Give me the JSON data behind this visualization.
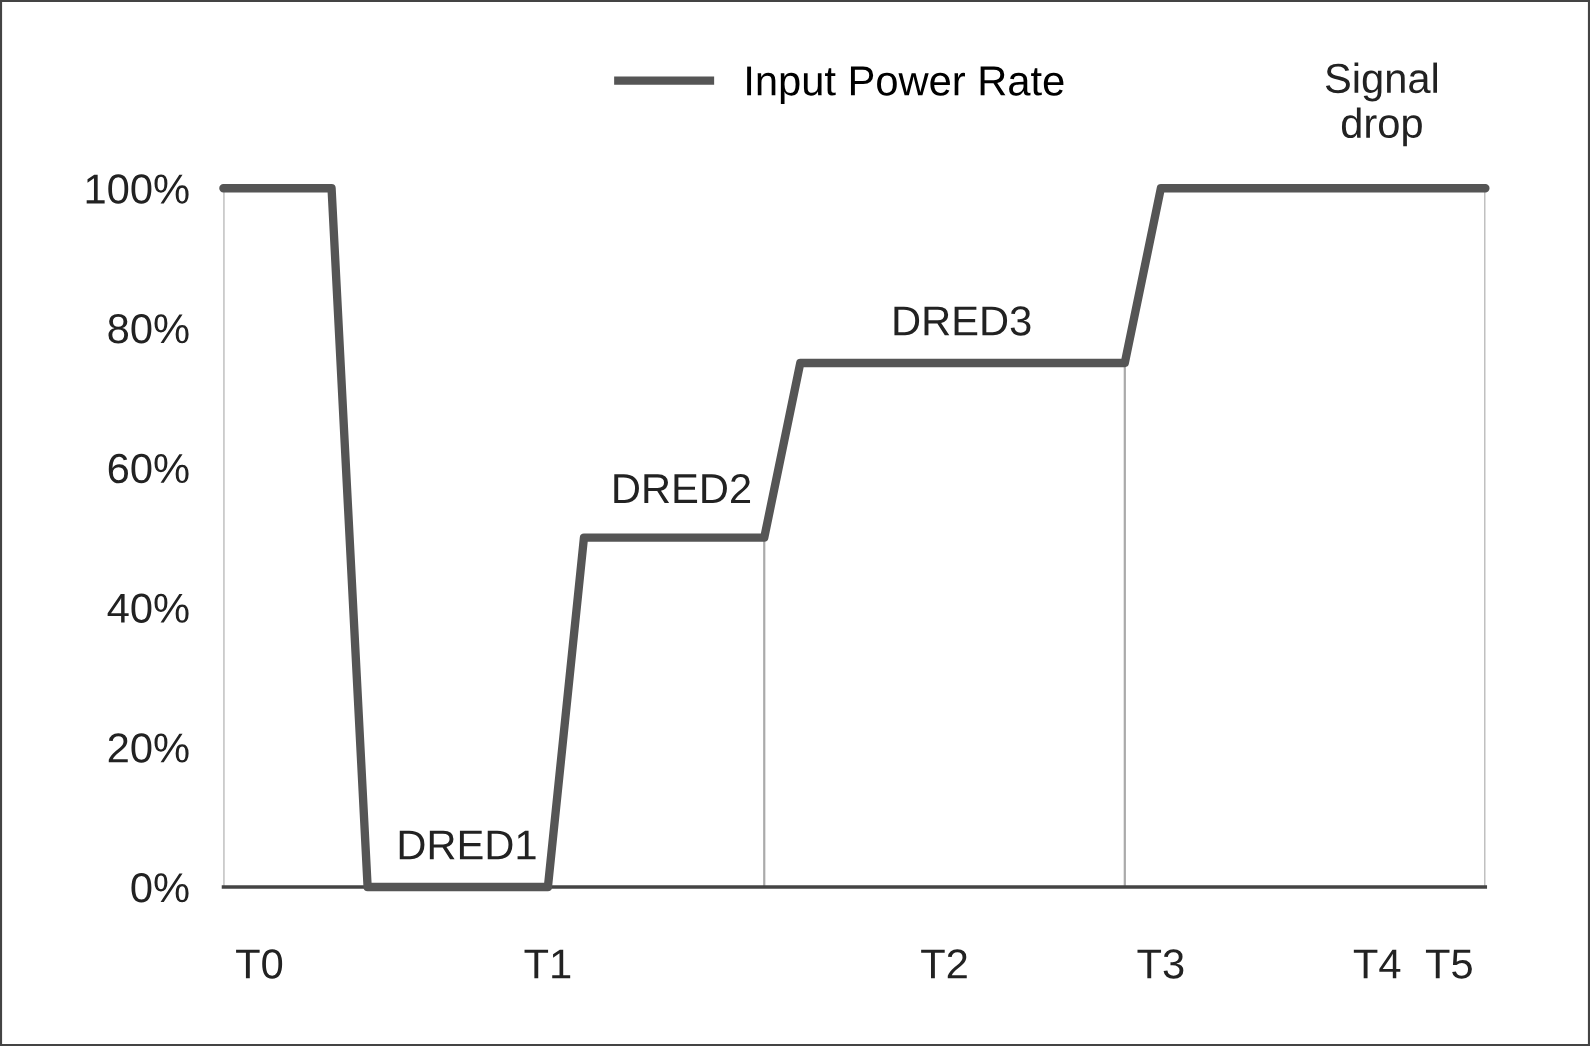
{
  "chart_data": {
    "type": "line",
    "categories": [
      null,
      "T0",
      null,
      null,
      null,
      null,
      null,
      null,
      null,
      "T1",
      null,
      null,
      null,
      null,
      null,
      null,
      null,
      null,
      null,
      null,
      "T2",
      null,
      null,
      null,
      null,
      null,
      "T3",
      null,
      null,
      null,
      null,
      null,
      "T4",
      null,
      "T5",
      null
    ],
    "series": [
      {
        "name": "Input Power Rate",
        "color": "#555555",
        "values": [
          100,
          100,
          100,
          100,
          0,
          0,
          0,
          0,
          0,
          0,
          50,
          50,
          50,
          50,
          50,
          50,
          75,
          75,
          75,
          75,
          75,
          75,
          75,
          75,
          75,
          75,
          100,
          100,
          100,
          100,
          100,
          100,
          100,
          100,
          100,
          100
        ]
      }
    ],
    "ylim": [
      0,
      100
    ],
    "yticks": [
      {
        "value": 0,
        "label": "0%"
      },
      {
        "value": 20,
        "label": "20%"
      },
      {
        "value": 40,
        "label": "40%"
      },
      {
        "value": 60,
        "label": "60%"
      },
      {
        "value": 80,
        "label": "80%"
      },
      {
        "value": 100,
        "label": "100%"
      }
    ],
    "annotations": [
      "DRED1",
      "DRED2",
      "DRED3",
      "Signal\ndrop"
    ],
    "legend": "top",
    "marker": "none",
    "line_style": "solid"
  }
}
